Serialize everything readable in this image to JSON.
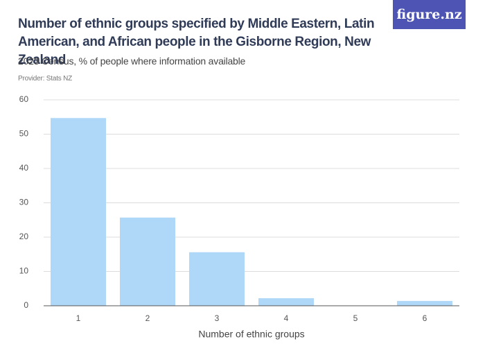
{
  "chart_data": {
    "type": "bar",
    "title": "Number of ethnic groups specified by Middle Eastern, Latin American, and African people in the Gisborne Region, New Zealand",
    "subtitle": "2023 Census, % of people where information available",
    "source": "Provider: Stats NZ",
    "logo": "figure.nz",
    "x_label": "Number of ethnic groups",
    "categories": [
      "1",
      "2",
      "3",
      "4",
      "5",
      "6"
    ],
    "values": [
      54.7,
      25.7,
      15.6,
      2.2,
      0,
      1.4
    ],
    "color": "#afd8f8",
    "ylim": [
      0,
      60
    ],
    "yticks": [
      0,
      10,
      20,
      30,
      40,
      50,
      60
    ],
    "grid": true
  }
}
